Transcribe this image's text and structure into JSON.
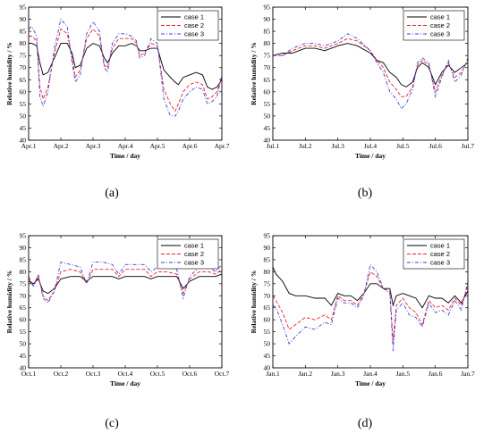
{
  "colors": {
    "case 1": "#000000",
    "case 2": "#e8212a",
    "case 3": "#3a3ee0"
  },
  "chart_data": [
    {
      "type": "line",
      "panel_label": "(a)",
      "xlabel": "Time / day",
      "ylabel": "Relative humidity / %",
      "xticks": [
        "Apr.1",
        "Apr.2",
        "Apr.3",
        "Apr.4",
        "Apr.5",
        "Apr.6",
        "Apr.7"
      ],
      "xlim": [
        0,
        6
      ],
      "ylim": [
        40,
        95
      ],
      "yticks": [
        40,
        45,
        50,
        55,
        60,
        65,
        70,
        75,
        80,
        85,
        90,
        95
      ],
      "legend": "top-right",
      "series": [
        {
          "name": "case 1",
          "dash": "solid",
          "x": [
            0,
            0.1,
            0.25,
            0.35,
            0.45,
            0.6,
            0.8,
            1.0,
            1.2,
            1.35,
            1.45,
            1.6,
            1.8,
            2.0,
            2.2,
            2.35,
            2.45,
            2.6,
            2.8,
            3.0,
            3.2,
            3.35,
            3.45,
            3.6,
            3.8,
            4.0,
            4.2,
            4.4,
            4.55,
            4.65,
            4.8,
            5.0,
            5.2,
            5.4,
            5.55,
            5.7,
            5.85,
            6.0
          ],
          "y": [
            80,
            80,
            79,
            72,
            67,
            68,
            74,
            80,
            80,
            76,
            70,
            71,
            78,
            80,
            79,
            74,
            72,
            76,
            79,
            79,
            80,
            79,
            77,
            77,
            78,
            78,
            69,
            66,
            64,
            63,
            66,
            67,
            68,
            67,
            62,
            61,
            62,
            65
          ]
        },
        {
          "name": "case 2",
          "dash": "dash",
          "x": [
            0,
            0.1,
            0.25,
            0.35,
            0.45,
            0.6,
            0.8,
            1.0,
            1.2,
            1.35,
            1.45,
            1.6,
            1.8,
            2.0,
            2.2,
            2.35,
            2.45,
            2.6,
            2.8,
            3.0,
            3.2,
            3.35,
            3.45,
            3.6,
            3.8,
            4.0,
            4.2,
            4.4,
            4.55,
            4.65,
            4.8,
            5.0,
            5.2,
            5.4,
            5.55,
            5.7,
            5.85,
            6.0
          ],
          "y": [
            83,
            83,
            81,
            62,
            57,
            62,
            76,
            86,
            84,
            74,
            66,
            69,
            82,
            86,
            83,
            71,
            70,
            78,
            82,
            82,
            82,
            80,
            75,
            76,
            80,
            79,
            61,
            55,
            52,
            55,
            60,
            63,
            64,
            63,
            57,
            58,
            60,
            66
          ]
        },
        {
          "name": "case 3",
          "dash": "dashdot",
          "x": [
            0,
            0.1,
            0.25,
            0.35,
            0.45,
            0.6,
            0.8,
            1.0,
            1.2,
            1.35,
            1.45,
            1.6,
            1.8,
            2.0,
            2.2,
            2.35,
            2.45,
            2.6,
            2.8,
            3.0,
            3.2,
            3.35,
            3.45,
            3.6,
            3.8,
            4.0,
            4.2,
            4.4,
            4.55,
            4.65,
            4.8,
            5.0,
            5.2,
            5.4,
            5.55,
            5.7,
            5.85,
            6.0
          ],
          "y": [
            86,
            87,
            83,
            58,
            54,
            60,
            78,
            90,
            87,
            72,
            64,
            67,
            84,
            89,
            85,
            70,
            68,
            80,
            84,
            84,
            83,
            81,
            74,
            75,
            82,
            80,
            57,
            50,
            50,
            52,
            57,
            60,
            62,
            61,
            55,
            56,
            58,
            67
          ]
        }
      ]
    },
    {
      "type": "line",
      "panel_label": "(b)",
      "xlabel": "Time / day",
      "ylabel": "Relative humidity / %",
      "xticks": [
        "Jul.1",
        "Jul.2",
        "Jul.3",
        "Jul.4",
        "Jul.5",
        "Jul.6",
        "Jul.7"
      ],
      "xlim": [
        0,
        6
      ],
      "ylim": [
        40,
        95
      ],
      "yticks": [
        40,
        45,
        50,
        55,
        60,
        65,
        70,
        75,
        80,
        85,
        90,
        95
      ],
      "legend": "top-right",
      "series": [
        {
          "name": "case 1",
          "dash": "solid",
          "x": [
            0,
            0.3,
            0.6,
            1.0,
            1.3,
            1.6,
            2.0,
            2.3,
            2.6,
            3.0,
            3.2,
            3.4,
            3.6,
            3.8,
            3.95,
            4.1,
            4.3,
            4.45,
            4.6,
            4.8,
            5.0,
            5.2,
            5.4,
            5.6,
            5.8,
            6.0
          ],
          "y": [
            75,
            76,
            76,
            78,
            78,
            77,
            79,
            80,
            79,
            76,
            73,
            72,
            68,
            66,
            63,
            62,
            64,
            70,
            72,
            70,
            63,
            68,
            71,
            68,
            70,
            72
          ]
        },
        {
          "name": "case 2",
          "dash": "dash",
          "x": [
            0,
            0.3,
            0.6,
            1.0,
            1.3,
            1.6,
            2.0,
            2.3,
            2.6,
            3.0,
            3.2,
            3.4,
            3.6,
            3.8,
            3.95,
            4.1,
            4.3,
            4.45,
            4.6,
            4.8,
            5.0,
            5.2,
            5.4,
            5.6,
            5.8,
            6.0
          ],
          "y": [
            75,
            75,
            77,
            79,
            79,
            78,
            80,
            82,
            81,
            77,
            73,
            70,
            64,
            61,
            58,
            58,
            62,
            71,
            73,
            71,
            60,
            67,
            72,
            66,
            68,
            73
          ]
        },
        {
          "name": "case 3",
          "dash": "dashdot",
          "x": [
            0,
            0.3,
            0.6,
            1.0,
            1.3,
            1.6,
            2.0,
            2.3,
            2.6,
            3.0,
            3.2,
            3.4,
            3.6,
            3.8,
            3.95,
            4.1,
            4.3,
            4.45,
            4.6,
            4.8,
            5.0,
            5.2,
            5.4,
            5.6,
            5.8,
            6.0
          ],
          "y": [
            75,
            75,
            78,
            80,
            80,
            79,
            81,
            84,
            82,
            77,
            72,
            68,
            60,
            57,
            53,
            55,
            61,
            72,
            74,
            72,
            58,
            66,
            73,
            64,
            67,
            74
          ]
        }
      ]
    },
    {
      "type": "line",
      "panel_label": "(c)",
      "xlabel": "Time / day",
      "ylabel": "Relative humidity / %",
      "xticks": [
        "Oct.1",
        "Oct.2",
        "Oct.3",
        "Oct.4",
        "Oct.5",
        "Oct.6",
        "Oct.7"
      ],
      "xlim": [
        0,
        6
      ],
      "ylim": [
        40,
        95
      ],
      "yticks": [
        40,
        45,
        50,
        55,
        60,
        65,
        70,
        75,
        80,
        85,
        90,
        95
      ],
      "legend": "top-right",
      "series": [
        {
          "name": "case 1",
          "dash": "solid",
          "x": [
            0,
            0.15,
            0.3,
            0.45,
            0.6,
            0.8,
            1.0,
            1.3,
            1.6,
            1.8,
            2.0,
            2.3,
            2.6,
            2.8,
            3.0,
            3.3,
            3.6,
            3.8,
            4.0,
            4.3,
            4.6,
            4.8,
            5.0,
            5.3,
            5.6,
            5.8,
            6.0
          ],
          "y": [
            76,
            75,
            77,
            72,
            71,
            73,
            77,
            78,
            78,
            76,
            78,
            78,
            78,
            77,
            78,
            78,
            78,
            77,
            78,
            78,
            78,
            73,
            76,
            78,
            78,
            78,
            79
          ]
        },
        {
          "name": "case 2",
          "dash": "dash",
          "x": [
            0,
            0.15,
            0.3,
            0.45,
            0.6,
            0.8,
            1.0,
            1.3,
            1.6,
            1.8,
            2.0,
            2.3,
            2.6,
            2.8,
            3.0,
            3.3,
            3.6,
            3.8,
            4.0,
            4.3,
            4.6,
            4.8,
            5.0,
            5.3,
            5.6,
            5.8,
            6.0
          ],
          "y": [
            77,
            74,
            78,
            70,
            68,
            72,
            80,
            81,
            80,
            75,
            81,
            81,
            81,
            78,
            81,
            81,
            81,
            78,
            80,
            80,
            79,
            71,
            77,
            80,
            80,
            79,
            81
          ]
        },
        {
          "name": "case 3",
          "dash": "dashdot",
          "x": [
            0,
            0.15,
            0.3,
            0.45,
            0.6,
            0.8,
            1.0,
            1.3,
            1.6,
            1.8,
            2.0,
            2.3,
            2.6,
            2.8,
            3.0,
            3.3,
            3.6,
            3.8,
            4.0,
            4.3,
            4.6,
            4.8,
            5.0,
            5.3,
            5.6,
            5.8,
            6.0
          ],
          "y": [
            78,
            74,
            79,
            69,
            67,
            72,
            84,
            83,
            82,
            75,
            84,
            84,
            83,
            79,
            83,
            83,
            83,
            80,
            82,
            82,
            81,
            69,
            78,
            82,
            82,
            80,
            83
          ]
        }
      ]
    },
    {
      "type": "line",
      "panel_label": "(d)",
      "xlabel": "Time / day",
      "ylabel": "Relative humidity / %",
      "xticks": [
        "Jan.1",
        "Jan.2",
        "Jan.3",
        "Jan.4",
        "Jan.5",
        "Jan.6",
        "Jan.7"
      ],
      "xlim": [
        0,
        6
      ],
      "ylim": [
        40,
        95
      ],
      "yticks": [
        40,
        45,
        50,
        55,
        60,
        65,
        70,
        75,
        80,
        85,
        90,
        95
      ],
      "legend": "top-right",
      "series": [
        {
          "name": "case 1",
          "dash": "solid",
          "x": [
            0,
            0.1,
            0.3,
            0.5,
            0.7,
            1.0,
            1.3,
            1.6,
            1.8,
            2.0,
            2.2,
            2.4,
            2.6,
            2.8,
            3.0,
            3.2,
            3.4,
            3.6,
            3.7,
            3.8,
            4.0,
            4.2,
            4.4,
            4.6,
            4.8,
            5.0,
            5.2,
            5.4,
            5.6,
            5.8,
            6.0
          ],
          "y": [
            82,
            79,
            76,
            71,
            70,
            70,
            69,
            69,
            66,
            71,
            70,
            70,
            68,
            71,
            75,
            75,
            73,
            73,
            66,
            70,
            71,
            70,
            69,
            65,
            70,
            69,
            69,
            67,
            70,
            67,
            72
          ]
        },
        {
          "name": "case 2",
          "dash": "dash",
          "x": [
            0,
            0.1,
            0.3,
            0.5,
            0.7,
            1.0,
            1.3,
            1.6,
            1.8,
            2.0,
            2.2,
            2.4,
            2.6,
            2.8,
            3.0,
            3.2,
            3.4,
            3.6,
            3.7,
            3.8,
            4.0,
            4.2,
            4.4,
            4.6,
            4.8,
            5.0,
            5.2,
            5.4,
            5.6,
            5.8,
            6.0
          ],
          "y": [
            70,
            68,
            63,
            56,
            58,
            61,
            60,
            62,
            60,
            70,
            68,
            68,
            66,
            71,
            80,
            78,
            73,
            72,
            51,
            66,
            69,
            65,
            63,
            58,
            68,
            65,
            66,
            64,
            69,
            66,
            74
          ]
        },
        {
          "name": "case 3",
          "dash": "dashdot",
          "x": [
            0,
            0.1,
            0.3,
            0.5,
            0.7,
            1.0,
            1.3,
            1.6,
            1.8,
            2.0,
            2.2,
            2.4,
            2.6,
            2.8,
            3.0,
            3.2,
            3.4,
            3.6,
            3.7,
            3.8,
            4.0,
            4.2,
            4.4,
            4.6,
            4.8,
            5.0,
            5.2,
            5.4,
            5.6,
            5.8,
            6.0
          ],
          "y": [
            66,
            65,
            58,
            50,
            53,
            57,
            56,
            59,
            58,
            69,
            67,
            67,
            65,
            70,
            83,
            80,
            73,
            71,
            47,
            64,
            67,
            62,
            61,
            57,
            67,
            63,
            64,
            62,
            68,
            64,
            76
          ]
        }
      ]
    }
  ]
}
